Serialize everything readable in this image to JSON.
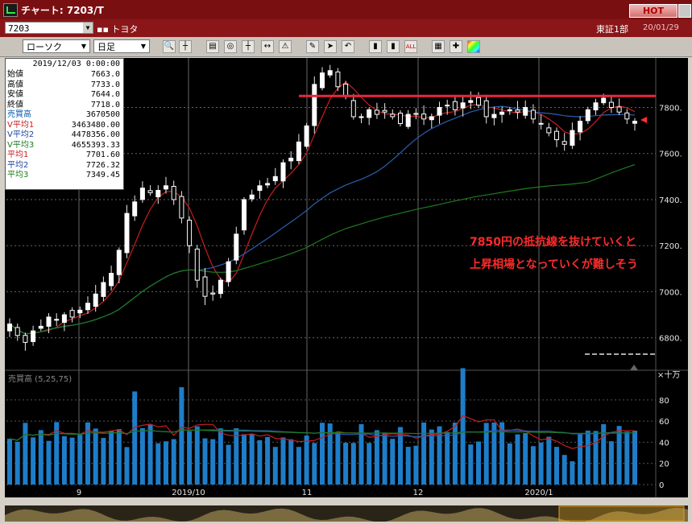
{
  "window": {
    "title": "チャート: 7203/T",
    "hot_label": "HOT"
  },
  "header": {
    "code": "7203",
    "name": "トヨタ",
    "market": "東証1部",
    "date": "20/01/29"
  },
  "toolbar": {
    "chart_type": "ローソク",
    "period": "日足"
  },
  "info": {
    "datetime": "2019/12/03 0:00:00",
    "rows": [
      {
        "label": "始値",
        "value": "7663.0",
        "color": "#000000"
      },
      {
        "label": "高値",
        "value": "7733.0",
        "color": "#000000"
      },
      {
        "label": "安値",
        "value": "7644.0",
        "color": "#000000"
      },
      {
        "label": "終値",
        "value": "7718.0",
        "color": "#000000"
      },
      {
        "label": "売買高",
        "value": "3670500",
        "color": "#0a5aa8"
      },
      {
        "label": "V平均1",
        "value": "3463480.00",
        "color": "#c81e1e"
      },
      {
        "label": "V平均2",
        "value": "4478356.00",
        "color": "#1e46a0"
      },
      {
        "label": "V平均3",
        "value": "4655393.33",
        "color": "#1e7a1e"
      },
      {
        "label": "平均1",
        "value": "7701.60",
        "color": "#c81e1e"
      },
      {
        "label": "平均2",
        "value": "7726.32",
        "color": "#1e46a0"
      },
      {
        "label": "平均3",
        "value": "7349.45",
        "color": "#1e7a1e"
      }
    ]
  },
  "annotation": {
    "line1": "7850円の抵抗線を抜けていくと",
    "line2": "上昇相場となっていくが難しそう"
  },
  "price_axis": {
    "labels": [
      "7800.",
      "7600.",
      "7400.",
      "7200.",
      "7000.",
      "6800."
    ],
    "values": [
      7800,
      7600,
      7400,
      7200,
      7000,
      6800
    ]
  },
  "volume_panel": {
    "label": "売買高 (5,25,75)",
    "unit": "×十万",
    "labels": [
      "80",
      "60",
      "40",
      "20",
      "0"
    ],
    "values": [
      80,
      60,
      40,
      20,
      0
    ]
  },
  "date_axis": {
    "labels": [
      "9",
      "2019/10",
      "11",
      "12",
      "2020/1"
    ]
  },
  "resistance": {
    "price": 7850
  },
  "colors": {
    "ma1": "#c81e1e",
    "ma2": "#2a5fb0",
    "ma3": "#1f7a1f",
    "volume": "#1e7dc8",
    "resistance": "#e8283c",
    "annotation": "#ff2a2a"
  },
  "chart_data": {
    "type": "candlestick",
    "title": "",
    "closes": [
      6860,
      6810,
      6780,
      6830,
      6850,
      6890,
      6880,
      6900,
      6890,
      6920,
      6950,
      6990,
      7040,
      7080,
      7180,
      7340,
      7390,
      7450,
      7430,
      7440,
      7460,
      7400,
      7320,
      7200,
      7050,
      6980,
      6990,
      7050,
      7130,
      7250,
      7400,
      7420,
      7460,
      7470,
      7500,
      7560,
      7580,
      7650,
      7720,
      7900,
      7950,
      7960,
      7890,
      7850,
      7760,
      7760,
      7790,
      7770,
      7780,
      7760,
      7730,
      7770,
      7770,
      7750,
      7760,
      7800,
      7810,
      7790,
      7820,
      7830,
      7810,
      7760,
      7770,
      7780,
      7790,
      7780,
      7800,
      7750,
      7730,
      7690,
      7660,
      7640,
      7700,
      7740,
      7790,
      7820,
      7840,
      7800,
      7780,
      7750,
      7740
    ],
    "resistance": 7850,
    "ylim": [
      6680,
      7980
    ],
    "volume_ylim": [
      0,
      105
    ]
  }
}
